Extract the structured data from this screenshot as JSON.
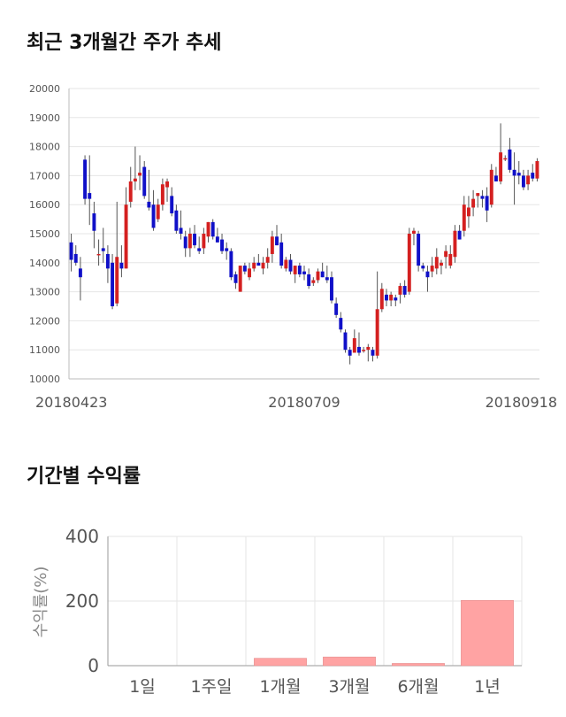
{
  "sections": {
    "price_title": "최근 3개월간 주가 추세",
    "returns_title": "기간별 수익률"
  },
  "colors": {
    "up": "#d42020",
    "down": "#1010c8",
    "wick": "#555555",
    "grid": "#e6e6e6",
    "bar": "#ffa3a3",
    "bar_edge": "#e08888"
  },
  "chart_data": [
    {
      "type": "candlestick",
      "title": "최근 3개월간 주가 추세",
      "ylim": [
        10000,
        20000
      ],
      "yticks": [
        10000,
        11000,
        12000,
        13000,
        14000,
        15000,
        16000,
        17000,
        18000,
        19000,
        20000
      ],
      "x_tick_labels": [
        {
          "index": 0,
          "label": "20180423"
        },
        {
          "index": 51,
          "label": "20180709"
        },
        {
          "index": 100,
          "label": "20180918"
        }
      ],
      "candles": [
        {
          "o": 14700,
          "h": 15000,
          "l": 13700,
          "c": 14100
        },
        {
          "o": 14300,
          "h": 14600,
          "l": 13900,
          "c": 14000
        },
        {
          "o": 13800,
          "h": 14200,
          "l": 12700,
          "c": 13500
        },
        {
          "o": 17550,
          "h": 17700,
          "l": 16000,
          "c": 16200
        },
        {
          "o": 16400,
          "h": 17700,
          "l": 15300,
          "c": 16200
        },
        {
          "o": 15700,
          "h": 16100,
          "l": 14500,
          "c": 15100
        },
        {
          "o": 14300,
          "h": 14800,
          "l": 13900,
          "c": 14300
        },
        {
          "o": 14500,
          "h": 15200,
          "l": 14000,
          "c": 14400
        },
        {
          "o": 14300,
          "h": 14600,
          "l": 13300,
          "c": 13800
        },
        {
          "o": 14000,
          "h": 14300,
          "l": 12400,
          "c": 12500
        },
        {
          "o": 12600,
          "h": 16100,
          "l": 12500,
          "c": 14200
        },
        {
          "o": 14000,
          "h": 14600,
          "l": 13500,
          "c": 13800
        },
        {
          "o": 13800,
          "h": 16600,
          "l": 13800,
          "c": 16000
        },
        {
          "o": 16100,
          "h": 17300,
          "l": 15900,
          "c": 16800
        },
        {
          "o": 16800,
          "h": 18000,
          "l": 16500,
          "c": 16900
        },
        {
          "o": 17000,
          "h": 17700,
          "l": 16500,
          "c": 17100
        },
        {
          "o": 17300,
          "h": 17500,
          "l": 16200,
          "c": 16300
        },
        {
          "o": 16100,
          "h": 17200,
          "l": 15800,
          "c": 15900
        },
        {
          "o": 16000,
          "h": 16500,
          "l": 15100,
          "c": 15200
        },
        {
          "o": 15500,
          "h": 16200,
          "l": 15400,
          "c": 16000
        },
        {
          "o": 16000,
          "h": 16900,
          "l": 15800,
          "c": 16700
        },
        {
          "o": 16600,
          "h": 16900,
          "l": 16100,
          "c": 16800
        },
        {
          "o": 16300,
          "h": 16600,
          "l": 15600,
          "c": 15700
        },
        {
          "o": 15800,
          "h": 16000,
          "l": 15000,
          "c": 15100
        },
        {
          "o": 15200,
          "h": 15800,
          "l": 14800,
          "c": 15000
        },
        {
          "o": 14900,
          "h": 15100,
          "l": 14200,
          "c": 14500
        },
        {
          "o": 14500,
          "h": 15200,
          "l": 14200,
          "c": 15000
        },
        {
          "o": 15000,
          "h": 15300,
          "l": 14500,
          "c": 14600
        },
        {
          "o": 14500,
          "h": 14900,
          "l": 14300,
          "c": 14400
        },
        {
          "o": 14500,
          "h": 15200,
          "l": 14300,
          "c": 15000
        },
        {
          "o": 14900,
          "h": 15400,
          "l": 14700,
          "c": 15400
        },
        {
          "o": 15400,
          "h": 15500,
          "l": 14800,
          "c": 14900
        },
        {
          "o": 14900,
          "h": 15200,
          "l": 14700,
          "c": 14700
        },
        {
          "o": 14800,
          "h": 15000,
          "l": 14300,
          "c": 14400
        },
        {
          "o": 14500,
          "h": 14700,
          "l": 14100,
          "c": 14400
        },
        {
          "o": 14400,
          "h": 14500,
          "l": 13400,
          "c": 13500
        },
        {
          "o": 13600,
          "h": 13700,
          "l": 13100,
          "c": 13300
        },
        {
          "o": 13000,
          "h": 13900,
          "l": 13000,
          "c": 13900
        },
        {
          "o": 13900,
          "h": 14000,
          "l": 13600,
          "c": 13700
        },
        {
          "o": 13500,
          "h": 14000,
          "l": 13400,
          "c": 13800
        },
        {
          "o": 13800,
          "h": 14200,
          "l": 13700,
          "c": 14000
        },
        {
          "o": 14000,
          "h": 14300,
          "l": 13900,
          "c": 13900
        },
        {
          "o": 13800,
          "h": 14200,
          "l": 13600,
          "c": 14000
        },
        {
          "o": 14000,
          "h": 14500,
          "l": 13800,
          "c": 14200
        },
        {
          "o": 14300,
          "h": 15100,
          "l": 14000,
          "c": 14900
        },
        {
          "o": 14900,
          "h": 15300,
          "l": 14600,
          "c": 14600
        },
        {
          "o": 14700,
          "h": 15000,
          "l": 13800,
          "c": 13900
        },
        {
          "o": 13800,
          "h": 14200,
          "l": 13700,
          "c": 14100
        },
        {
          "o": 14100,
          "h": 14300,
          "l": 13600,
          "c": 13700
        },
        {
          "o": 13600,
          "h": 13900,
          "l": 13300,
          "c": 13900
        },
        {
          "o": 13900,
          "h": 14000,
          "l": 13500,
          "c": 13600
        },
        {
          "o": 13700,
          "h": 13900,
          "l": 13400,
          "c": 13600
        },
        {
          "o": 13600,
          "h": 13800,
          "l": 13100,
          "c": 13200
        },
        {
          "o": 13300,
          "h": 13500,
          "l": 13200,
          "c": 13400
        },
        {
          "o": 13400,
          "h": 13800,
          "l": 13300,
          "c": 13700
        },
        {
          "o": 13700,
          "h": 14000,
          "l": 13500,
          "c": 13500
        },
        {
          "o": 13500,
          "h": 13900,
          "l": 13300,
          "c": 13400
        },
        {
          "o": 13500,
          "h": 13700,
          "l": 12600,
          "c": 12700
        },
        {
          "o": 12600,
          "h": 12800,
          "l": 12100,
          "c": 12200
        },
        {
          "o": 12100,
          "h": 12300,
          "l": 11600,
          "c": 11700
        },
        {
          "o": 11600,
          "h": 11700,
          "l": 10900,
          "c": 11000
        },
        {
          "o": 11000,
          "h": 11100,
          "l": 10500,
          "c": 10800
        },
        {
          "o": 10900,
          "h": 11700,
          "l": 10900,
          "c": 11400
        },
        {
          "o": 11100,
          "h": 11600,
          "l": 10800,
          "c": 10900
        },
        {
          "o": 11000,
          "h": 11100,
          "l": 10900,
          "c": 11000
        },
        {
          "o": 11000,
          "h": 11200,
          "l": 10600,
          "c": 11100
        },
        {
          "o": 11000,
          "h": 11100,
          "l": 10600,
          "c": 10800
        },
        {
          "o": 10800,
          "h": 13700,
          "l": 10700,
          "c": 12400
        },
        {
          "o": 12400,
          "h": 13300,
          "l": 12300,
          "c": 13100
        },
        {
          "o": 12900,
          "h": 13100,
          "l": 12500,
          "c": 12700
        },
        {
          "o": 12700,
          "h": 13000,
          "l": 12500,
          "c": 12900
        },
        {
          "o": 12800,
          "h": 12900,
          "l": 12500,
          "c": 12700
        },
        {
          "o": 12900,
          "h": 13300,
          "l": 12600,
          "c": 13200
        },
        {
          "o": 13200,
          "h": 13400,
          "l": 12800,
          "c": 12900
        },
        {
          "o": 13000,
          "h": 15200,
          "l": 12900,
          "c": 15000
        },
        {
          "o": 15000,
          "h": 15200,
          "l": 14600,
          "c": 15100
        },
        {
          "o": 15000,
          "h": 15100,
          "l": 13700,
          "c": 13900
        },
        {
          "o": 13900,
          "h": 14000,
          "l": 13700,
          "c": 13800
        },
        {
          "o": 13700,
          "h": 13900,
          "l": 13000,
          "c": 13500
        },
        {
          "o": 13700,
          "h": 14200,
          "l": 13500,
          "c": 13900
        },
        {
          "o": 13800,
          "h": 14500,
          "l": 13600,
          "c": 14200
        },
        {
          "o": 13900,
          "h": 14100,
          "l": 13600,
          "c": 14000
        },
        {
          "o": 14200,
          "h": 14600,
          "l": 13800,
          "c": 14400
        },
        {
          "o": 13900,
          "h": 14600,
          "l": 13800,
          "c": 14300
        },
        {
          "o": 14200,
          "h": 15300,
          "l": 14000,
          "c": 15100
        },
        {
          "o": 15100,
          "h": 15300,
          "l": 14800,
          "c": 14800
        },
        {
          "o": 15100,
          "h": 16300,
          "l": 14900,
          "c": 16000
        },
        {
          "o": 15600,
          "h": 16300,
          "l": 15200,
          "c": 15900
        },
        {
          "o": 15900,
          "h": 16500,
          "l": 15600,
          "c": 16200
        },
        {
          "o": 16300,
          "h": 16400,
          "l": 15900,
          "c": 16400
        },
        {
          "o": 16300,
          "h": 16500,
          "l": 15900,
          "c": 16200
        },
        {
          "o": 16300,
          "h": 16600,
          "l": 15400,
          "c": 15800
        },
        {
          "o": 16000,
          "h": 17400,
          "l": 15900,
          "c": 17200
        },
        {
          "o": 17000,
          "h": 17300,
          "l": 16800,
          "c": 16800
        },
        {
          "o": 16800,
          "h": 18800,
          "l": 16700,
          "c": 17800
        },
        {
          "o": 17600,
          "h": 17700,
          "l": 17500,
          "c": 17600
        },
        {
          "o": 17900,
          "h": 18300,
          "l": 17100,
          "c": 17200
        },
        {
          "o": 17200,
          "h": 17800,
          "l": 16000,
          "c": 17000
        },
        {
          "o": 17100,
          "h": 17500,
          "l": 16700,
          "c": 17000
        },
        {
          "o": 17000,
          "h": 17200,
          "l": 16500,
          "c": 16600
        },
        {
          "o": 16700,
          "h": 17200,
          "l": 16500,
          "c": 17000
        },
        {
          "o": 17100,
          "h": 17400,
          "l": 16800,
          "c": 16900
        },
        {
          "o": 16900,
          "h": 17600,
          "l": 16800,
          "c": 17500
        }
      ]
    },
    {
      "type": "bar",
      "title": "기간별 수익률",
      "categories": [
        "1일",
        "1주일",
        "1개월",
        "3개월",
        "6개월",
        "1년"
      ],
      "values": [
        0,
        0,
        23,
        27,
        7,
        202
      ],
      "ylabel": "수익률(%)",
      "ylim": [
        0,
        400
      ],
      "yticks": [
        0,
        200,
        400
      ]
    }
  ]
}
